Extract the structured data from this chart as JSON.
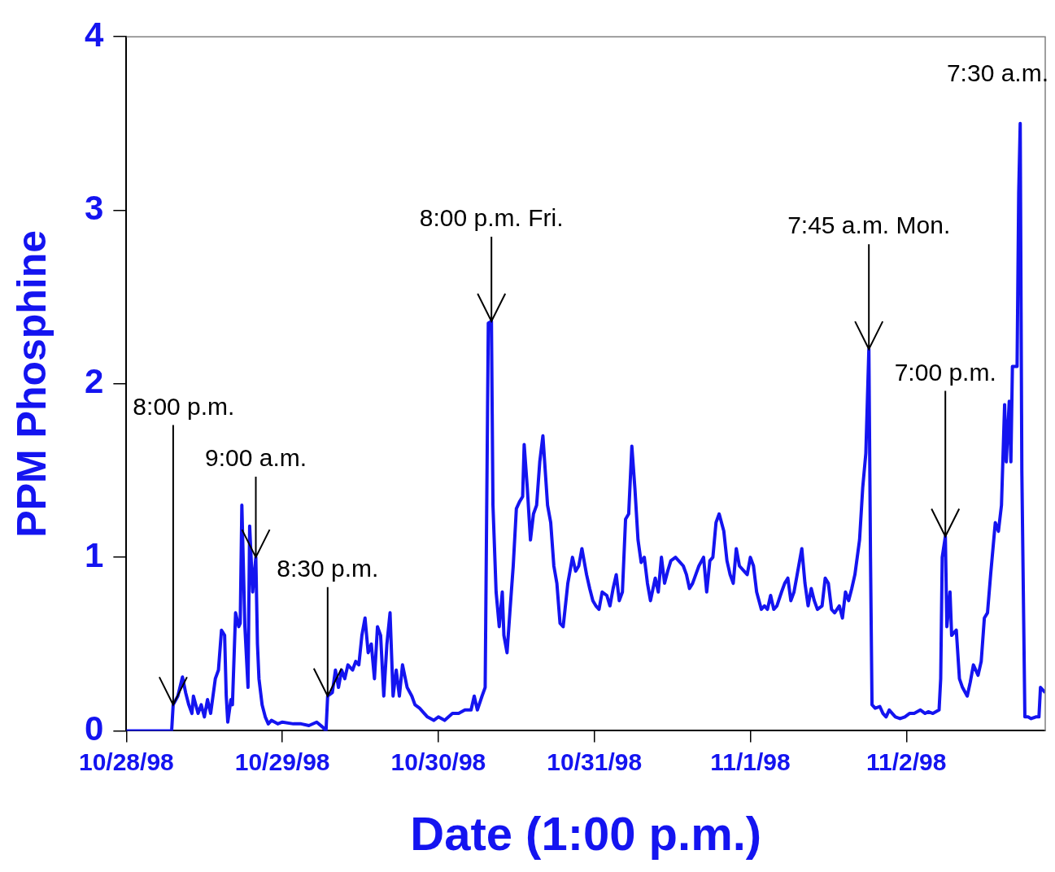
{
  "chart_data": {
    "type": "line",
    "xlabel": "Date (1:00 p.m.)",
    "ylabel": "PPM Phosphine",
    "marker": "none",
    "line_style": "solid",
    "grid": false,
    "xlim": [
      "1998-10-28T13:00",
      "1998-11-03T10:22"
    ],
    "xticks": [
      {
        "value": "1998-10-28T13:00",
        "label": "10/28/98"
      },
      {
        "value": "1998-10-29T13:00",
        "label": "10/29/98"
      },
      {
        "value": "1998-10-30T13:00",
        "label": "10/30/98"
      },
      {
        "value": "1998-10-31T13:00",
        "label": "10/31/98"
      },
      {
        "value": "1998-11-01T13:00",
        "label": "11/1/98"
      },
      {
        "value": "1998-11-02T13:00",
        "label": "11/2/98"
      }
    ],
    "ylim": [
      0,
      4
    ],
    "yticks": [
      0,
      1,
      2,
      3,
      4
    ],
    "x": [
      "1998-10-28T13:00",
      "1998-10-28T19:58",
      "1998-10-28T20:12",
      "1998-10-28T20:55",
      "1998-10-28T21:38",
      "1998-10-28T22:07",
      "1998-10-28T22:36",
      "1998-10-28T23:05",
      "1998-10-28T23:19",
      "1998-10-29T00:02",
      "1998-10-29T00:31",
      "1998-10-29T01:00",
      "1998-10-29T01:29",
      "1998-10-29T01:58",
      "1998-10-29T02:41",
      "1998-10-29T03:10",
      "1998-10-29T03:38",
      "1998-10-29T04:07",
      "1998-10-29T04:22",
      "1998-10-29T04:36",
      "1998-10-29T05:05",
      "1998-10-29T05:19",
      "1998-10-29T05:48",
      "1998-10-29T06:17",
      "1998-10-29T06:31",
      "1998-10-29T06:46",
      "1998-10-29T07:14",
      "1998-10-29T07:43",
      "1998-10-29T07:58",
      "1998-10-29T08:26",
      "1998-10-29T08:55",
      "1998-10-29T09:10",
      "1998-10-29T09:24",
      "1998-10-29T09:53",
      "1998-10-29T10:22",
      "1998-10-29T10:50",
      "1998-10-29T11:19",
      "1998-10-29T12:17",
      "1998-10-29T13:00",
      "1998-10-29T14:41",
      "1998-10-29T15:53",
      "1998-10-29T17:05",
      "1998-10-29T18:17",
      "1998-10-29T19:14",
      "1998-10-29T19:43",
      "1998-10-29T19:58",
      "1998-10-29T20:41",
      "1998-10-29T21:10",
      "1998-10-29T21:38",
      "1998-10-29T22:07",
      "1998-10-29T22:36",
      "1998-10-29T23:05",
      "1998-10-29T23:48",
      "1998-10-30T00:17",
      "1998-10-30T00:46",
      "1998-10-30T01:14",
      "1998-10-30T01:43",
      "1998-10-30T02:12",
      "1998-10-30T02:41",
      "1998-10-30T03:10",
      "1998-10-30T03:38",
      "1998-10-30T04:07",
      "1998-10-30T04:36",
      "1998-10-30T05:05",
      "1998-10-30T05:34",
      "1998-10-30T06:02",
      "1998-10-30T06:31",
      "1998-10-30T07:00",
      "1998-10-30T07:29",
      "1998-10-30T08:12",
      "1998-10-30T08:55",
      "1998-10-30T09:24",
      "1998-10-30T10:07",
      "1998-10-30T10:50",
      "1998-10-30T11:19",
      "1998-10-30T12:17",
      "1998-10-30T13:00",
      "1998-10-30T13:58",
      "1998-10-30T15:10",
      "1998-10-30T16:07",
      "1998-10-30T17:05",
      "1998-10-30T18:02",
      "1998-10-30T18:31",
      "1998-10-30T19:00",
      "1998-10-30T19:43",
      "1998-10-30T20:12",
      "1998-10-30T20:41",
      "1998-10-30T21:10",
      "1998-10-30T21:24",
      "1998-10-30T21:53",
      "1998-10-30T22:22",
      "1998-10-30T22:50",
      "1998-10-30T23:05",
      "1998-10-30T23:34",
      "1998-10-31T00:02",
      "1998-10-31T00:31",
      "1998-10-31T01:00",
      "1998-10-31T01:29",
      "1998-10-31T01:58",
      "1998-10-31T02:12",
      "1998-10-31T02:41",
      "1998-10-31T03:10",
      "1998-10-31T03:38",
      "1998-10-31T04:07",
      "1998-10-31T04:36",
      "1998-10-31T05:05",
      "1998-10-31T05:48",
      "1998-10-31T06:17",
      "1998-10-31T06:46",
      "1998-10-31T07:14",
      "1998-10-31T07:43",
      "1998-10-31T08:12",
      "1998-10-31T08:55",
      "1998-10-31T09:38",
      "1998-10-31T10:07",
      "1998-10-31T10:36",
      "1998-10-31T11:05",
      "1998-10-31T11:48",
      "1998-10-31T12:17",
      "1998-10-31T12:46",
      "1998-10-31T13:14",
      "1998-10-31T13:43",
      "1998-10-31T14:12",
      "1998-10-31T14:55",
      "1998-10-31T15:24",
      "1998-10-31T15:53",
      "1998-10-31T16:22",
      "1998-10-31T16:50",
      "1998-10-31T17:19",
      "1998-10-31T17:48",
      "1998-10-31T18:17",
      "1998-10-31T18:46",
      "1998-10-31T19:14",
      "1998-10-31T19:43",
      "1998-10-31T20:12",
      "1998-10-31T20:41",
      "1998-10-31T21:10",
      "1998-10-31T21:38",
      "1998-10-31T22:22",
      "1998-10-31T22:50",
      "1998-10-31T23:19",
      "1998-10-31T23:48",
      "1998-11-01T00:17",
      "1998-11-01T00:46",
      "1998-11-01T01:29",
      "1998-11-01T01:58",
      "1998-11-01T02:41",
      "1998-11-01T03:10",
      "1998-11-01T03:38",
      "1998-11-01T04:07",
      "1998-11-01T04:36",
      "1998-11-01T05:05",
      "1998-11-01T05:48",
      "1998-11-01T06:17",
      "1998-11-01T06:46",
      "1998-11-01T07:14",
      "1998-11-01T07:43",
      "1998-11-01T08:12",
      "1998-11-01T08:55",
      "1998-11-01T09:24",
      "1998-11-01T09:53",
      "1998-11-01T10:22",
      "1998-11-01T10:50",
      "1998-11-01T11:19",
      "1998-11-01T12:02",
      "1998-11-01T12:31",
      "1998-11-01T13:00",
      "1998-11-01T13:29",
      "1998-11-01T13:58",
      "1998-11-01T14:41",
      "1998-11-01T15:10",
      "1998-11-01T15:38",
      "1998-11-01T16:07",
      "1998-11-01T16:36",
      "1998-11-01T17:05",
      "1998-11-01T17:48",
      "1998-11-01T18:17",
      "1998-11-01T18:46",
      "1998-11-01T19:14",
      "1998-11-01T19:43",
      "1998-11-01T20:12",
      "1998-11-01T20:55",
      "1998-11-01T21:24",
      "1998-11-01T21:53",
      "1998-11-01T22:22",
      "1998-11-01T22:50",
      "1998-11-01T23:19",
      "1998-11-02T00:02",
      "1998-11-02T00:31",
      "1998-11-02T01:00",
      "1998-11-02T01:29",
      "1998-11-02T01:58",
      "1998-11-02T02:41",
      "1998-11-02T03:10",
      "1998-11-02T03:38",
      "1998-11-02T04:07",
      "1998-11-02T04:36",
      "1998-11-02T05:05",
      "1998-11-02T05:48",
      "1998-11-02T06:17",
      "1998-11-02T06:46",
      "1998-11-02T07:14",
      "1998-11-02T07:29",
      "1998-11-02T07:43",
      "1998-11-02T08:12",
      "1998-11-02T08:55",
      "1998-11-02T09:24",
      "1998-11-02T09:53",
      "1998-11-02T10:22",
      "1998-11-02T10:50",
      "1998-11-02T11:19",
      "1998-11-02T12:02",
      "1998-11-02T12:46",
      "1998-11-02T13:29",
      "1998-11-02T14:12",
      "1998-11-02T15:10",
      "1998-11-02T15:53",
      "1998-11-02T16:22",
      "1998-11-02T17:05",
      "1998-11-02T18:02",
      "1998-11-02T18:17",
      "1998-11-02T18:31",
      "1998-11-02T19:00",
      "1998-11-02T19:14",
      "1998-11-02T19:43",
      "1998-11-02T19:58",
      "1998-11-02T20:41",
      "1998-11-02T21:10",
      "1998-11-02T21:38",
      "1998-11-02T22:22",
      "1998-11-02T22:50",
      "1998-11-02T23:19",
      "1998-11-03T00:02",
      "1998-11-03T00:31",
      "1998-11-03T01:00",
      "1998-11-03T01:29",
      "1998-11-03T01:58",
      "1998-11-03T02:41",
      "1998-11-03T03:10",
      "1998-11-03T03:38",
      "1998-11-03T04:07",
      "1998-11-03T04:22",
      "1998-11-03T04:50",
      "1998-11-03T05:05",
      "1998-11-03T05:19",
      "1998-11-03T06:02",
      "1998-11-03T06:17",
      "1998-11-03T06:31",
      "1998-11-03T06:46",
      "1998-11-03T07:14",
      "1998-11-03T07:43",
      "1998-11-03T08:12",
      "1998-11-03T08:55",
      "1998-11-03T09:24",
      "1998-11-03T09:38",
      "1998-11-03T10:22"
    ],
    "series": [
      {
        "color": "#1414f0",
        "values": [
          0,
          0,
          0.15,
          0.2,
          0.31,
          0.22,
          0.15,
          0.1,
          0.2,
          0.1,
          0.15,
          0.08,
          0.18,
          0.1,
          0.3,
          0.35,
          0.58,
          0.55,
          0.2,
          0.05,
          0.18,
          0.15,
          0.68,
          0.6,
          0.62,
          1.3,
          0.6,
          0.25,
          1.18,
          0.8,
          1.0,
          0.5,
          0.3,
          0.15,
          0.08,
          0.04,
          0.06,
          0.04,
          0.05,
          0.04,
          0.04,
          0.03,
          0.05,
          0.02,
          0,
          0.2,
          0.22,
          0.35,
          0.25,
          0.35,
          0.3,
          0.38,
          0.35,
          0.4,
          0.38,
          0.55,
          0.65,
          0.45,
          0.5,
          0.3,
          0.6,
          0.55,
          0.2,
          0.5,
          0.68,
          0.2,
          0.35,
          0.2,
          0.38,
          0.25,
          0.2,
          0.15,
          0.13,
          0.1,
          0.08,
          0.06,
          0.08,
          0.06,
          0.1,
          0.1,
          0.12,
          0.12,
          0.2,
          0.12,
          0.2,
          0.25,
          2.35,
          2.36,
          1.3,
          0.8,
          0.6,
          0.8,
          0.55,
          0.45,
          0.7,
          0.95,
          1.28,
          1.32,
          1.35,
          1.65,
          1.4,
          1.1,
          1.25,
          1.3,
          1.55,
          1.7,
          1.3,
          1.2,
          0.95,
          0.85,
          0.62,
          0.6,
          0.85,
          1.0,
          0.92,
          0.95,
          1.05,
          0.9,
          0.82,
          0.75,
          0.72,
          0.7,
          0.8,
          0.78,
          0.72,
          0.82,
          0.9,
          0.75,
          0.8,
          1.22,
          1.25,
          1.64,
          1.4,
          1.1,
          0.97,
          1.0,
          0.85,
          0.75,
          0.88,
          0.8,
          1.0,
          0.85,
          0.92,
          0.98,
          1.0,
          0.98,
          0.95,
          0.9,
          0.82,
          0.85,
          0.9,
          0.95,
          1.0,
          0.8,
          0.98,
          1.0,
          1.2,
          1.25,
          1.15,
          0.98,
          0.9,
          0.85,
          1.05,
          0.95,
          0.92,
          0.9,
          1.0,
          0.95,
          0.8,
          0.7,
          0.72,
          0.7,
          0.78,
          0.7,
          0.72,
          0.8,
          0.85,
          0.88,
          0.75,
          0.8,
          0.9,
          1.05,
          0.85,
          0.72,
          0.82,
          0.75,
          0.7,
          0.72,
          0.88,
          0.85,
          0.7,
          0.68,
          0.72,
          0.65,
          0.8,
          0.75,
          0.82,
          0.9,
          1.1,
          1.4,
          1.6,
          2.2,
          1.0,
          0.15,
          0.13,
          0.14,
          0.1,
          0.08,
          0.12,
          0.1,
          0.08,
          0.07,
          0.08,
          0.1,
          0.1,
          0.12,
          0.1,
          0.11,
          0.1,
          0.12,
          0.3,
          1.0,
          1.12,
          0.6,
          0.8,
          0.55,
          0.58,
          0.3,
          0.25,
          0.2,
          0.28,
          0.38,
          0.32,
          0.4,
          0.65,
          0.68,
          0.9,
          1.2,
          1.15,
          1.3,
          1.88,
          1.55,
          1.9,
          1.55,
          2.1,
          2.1,
          3.1,
          3.5,
          1.5,
          0.08,
          0.08,
          0.07,
          0.08,
          0.08,
          0.25,
          0.22
        ]
      }
    ],
    "annotations": [
      {
        "text": "8:00 p.m.",
        "x": "1998-10-28T20:12",
        "y": 0.15
      },
      {
        "text": "9:00 a.m.",
        "x": "1998-10-29T08:55",
        "y": 1.0
      },
      {
        "text": "8:30 p.m.",
        "x": "1998-10-29T19:58",
        "y": 0.2
      },
      {
        "text": "8:00 p.m. Fri.",
        "x": "1998-10-30T21:10",
        "y": 2.36
      },
      {
        "text": "7:45 a.m. Mon.",
        "x": "1998-11-02T07:14",
        "y": 2.2
      },
      {
        "text": "7:00 p.m.",
        "x": "1998-11-02T19:00",
        "y": 1.12
      },
      {
        "text": "7:30 a.m.",
        "x": "1998-11-03T06:31",
        "y": 3.5
      }
    ]
  }
}
